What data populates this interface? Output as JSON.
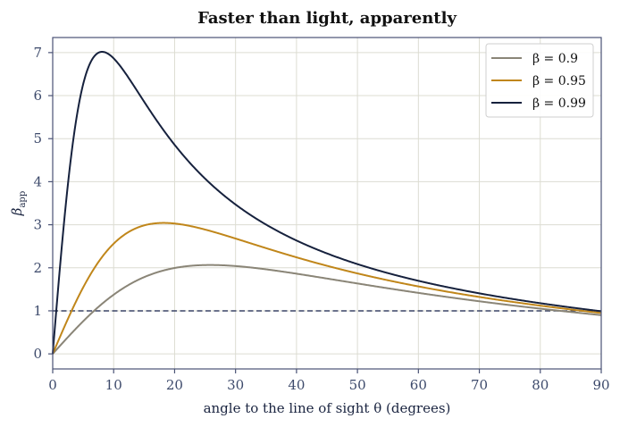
{
  "chart_data": {
    "type": "line",
    "title": "Faster than light, apparently",
    "xlabel": "angle to the line of sight θ (degrees)",
    "ylabel_main": "β",
    "ylabel_sub": "app",
    "xlim": [
      0,
      90
    ],
    "ylim": [
      -0.35,
      7.35
    ],
    "xticks": [
      "0",
      "10",
      "20",
      "30",
      "40",
      "50",
      "60",
      "70",
      "80",
      "90"
    ],
    "yticks": [
      "0",
      "1",
      "2",
      "3",
      "4",
      "5",
      "6",
      "7"
    ],
    "grid": true,
    "legend_position": "top-right",
    "reference_line": {
      "y": 1,
      "style": "dashed",
      "color": "#3a4466"
    },
    "series": [
      {
        "name": "β = 0.9",
        "beta": 0.9,
        "color": "#8a8577"
      },
      {
        "name": "β = 0.95",
        "beta": 0.95,
        "color": "#c0861a"
      },
      {
        "name": "β = 0.99",
        "beta": 0.99,
        "color": "#16213d"
      }
    ]
  }
}
